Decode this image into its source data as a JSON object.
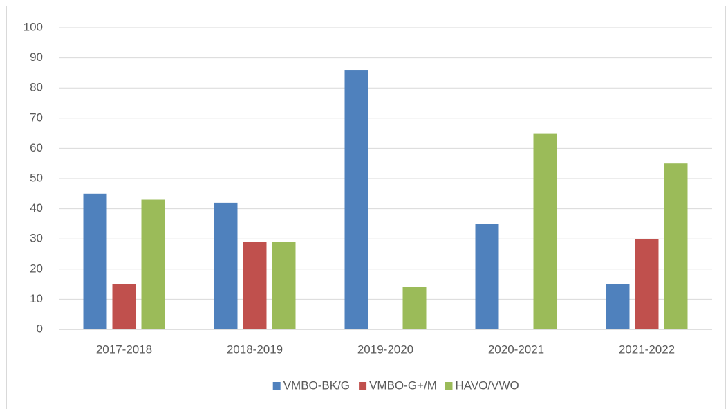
{
  "chart_data": {
    "type": "bar",
    "categories": [
      "2017-2018",
      "2018-2019",
      "2019-2020",
      "2020-2021",
      "2021-2022"
    ],
    "series": [
      {
        "name": "VMBO-BK/G",
        "color": "#4f81bd",
        "values": [
          45,
          42,
          86,
          35,
          15
        ]
      },
      {
        "name": "VMBO-G+/M",
        "color": "#c0504d",
        "values": [
          15,
          29,
          0,
          0,
          30
        ]
      },
      {
        "name": "HAVO/VWO",
        "color": "#9bbb59",
        "values": [
          43,
          29,
          14,
          65,
          55
        ]
      }
    ],
    "ylim": [
      0,
      100
    ],
    "yticks": [
      0,
      10,
      20,
      30,
      40,
      50,
      60,
      70,
      80,
      90,
      100
    ],
    "grid": true,
    "legend": "bottom"
  }
}
